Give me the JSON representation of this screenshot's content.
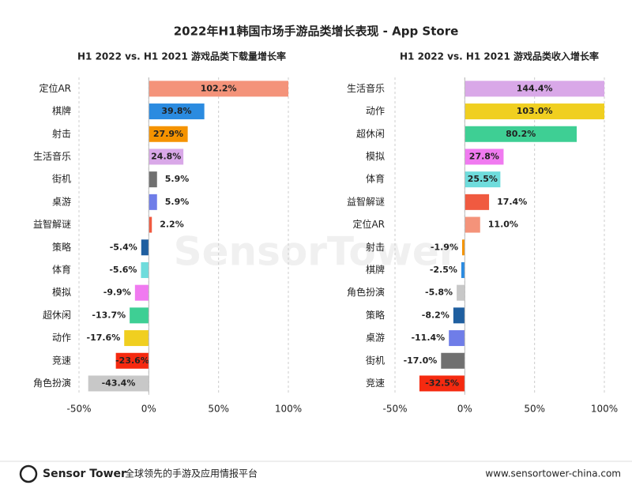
{
  "title": "2022年H1韩国市场手游品类增长表现 - App Store",
  "watermark": "SensorTower",
  "footer": {
    "brand": "Sensor Tower",
    "slogan": "全球领先的手游及应用情报平台",
    "url": "www.sensortower-china.com"
  },
  "chart_data": [
    {
      "type": "hbar",
      "title": "H1 2022 vs. H1 2021 游戏品类下载量增长率",
      "categories": [
        "定位AR",
        "棋牌",
        "射击",
        "生活音乐",
        "街机",
        "桌游",
        "益智解谜",
        "策略",
        "体育",
        "模拟",
        "超休闲",
        "动作",
        "竞速",
        "角色扮演"
      ],
      "values": [
        102.2,
        39.8,
        27.9,
        24.8,
        5.9,
        5.9,
        2.2,
        -5.4,
        -5.6,
        -9.9,
        -13.7,
        -17.6,
        -23.6,
        -43.4
      ],
      "value_labels": [
        "102.2%",
        "39.8%",
        "27.9%",
        "24.8%",
        "5.9%",
        "5.9%",
        "2.2%",
        "-5.4%",
        "-5.6%",
        "-9.9%",
        "-13.7%",
        "-17.6%",
        "-23.6%",
        "-43.4%"
      ],
      "colors": [
        "#f4937a",
        "#2b8be0",
        "#f59300",
        "#d9a8e8",
        "#707070",
        "#6f7de8",
        "#f05a40",
        "#1f5fa0",
        "#6fdcdc",
        "#f07af0",
        "#3ecf94",
        "#f0cf20",
        "#f52a10",
        "#c8c8c8"
      ],
      "xlim": [
        -50,
        100
      ],
      "xticks": [
        {
          "value": -50,
          "label": "-50%"
        },
        {
          "value": 0,
          "label": "0%"
        },
        {
          "value": 50,
          "label": "50%"
        },
        {
          "value": 100,
          "label": "100%"
        }
      ],
      "grid": true
    },
    {
      "type": "hbar",
      "title": "H1 2022 vs. H1 2021 游戏品类收入增长率",
      "categories": [
        "生活音乐",
        "动作",
        "超休闲",
        "模拟",
        "体育",
        "益智解谜",
        "定位AR",
        "射击",
        "棋牌",
        "角色扮演",
        "策略",
        "桌游",
        "街机",
        "竞速"
      ],
      "values": [
        144.4,
        103.0,
        80.2,
        27.8,
        25.5,
        17.4,
        11.0,
        -1.9,
        -2.5,
        -5.8,
        -8.2,
        -11.4,
        -17.0,
        -32.5
      ],
      "value_labels": [
        "144.4%",
        "103.0%",
        "80.2%",
        "27.8%",
        "25.5%",
        "17.4%",
        "11.0%",
        "-1.9%",
        "-2.5%",
        "-5.8%",
        "-8.2%",
        "-11.4%",
        "-17.0%",
        "-32.5%"
      ],
      "colors": [
        "#d9a8e8",
        "#f0cf20",
        "#3ecf94",
        "#f07af0",
        "#6fdcdc",
        "#f05a40",
        "#f4937a",
        "#f59300",
        "#2b8be0",
        "#c8c8c8",
        "#1f5fa0",
        "#6f7de8",
        "#707070",
        "#f52a10"
      ],
      "xlim": [
        -50,
        100
      ],
      "xticks": [
        {
          "value": -50,
          "label": "-50%"
        },
        {
          "value": 0,
          "label": "0%"
        },
        {
          "value": 50,
          "label": "50%"
        },
        {
          "value": 100,
          "label": "100%"
        }
      ],
      "grid": true
    }
  ]
}
